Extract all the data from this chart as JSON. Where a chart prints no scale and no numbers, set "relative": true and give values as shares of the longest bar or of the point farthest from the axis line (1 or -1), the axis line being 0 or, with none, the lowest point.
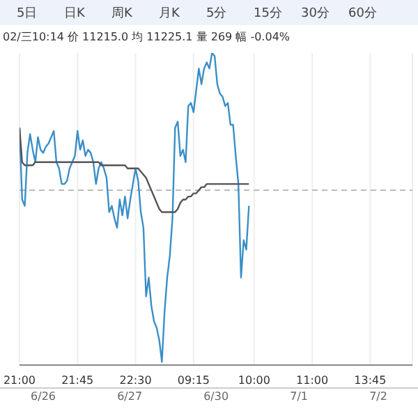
{
  "chart_data": {
    "type": "line",
    "relative": true,
    "grid": "x",
    "legend": false,
    "marker": "none",
    "line_style": "solid",
    "categories": [
      "21:00",
      null,
      null,
      null,
      null,
      null,
      null,
      null,
      null,
      null,
      null,
      null,
      null,
      null,
      null,
      null,
      null,
      null,
      null,
      null,
      null,
      null,
      "21:45",
      null,
      null,
      null,
      null,
      null,
      null,
      null,
      null,
      null,
      null,
      null,
      null,
      null,
      null,
      null,
      null,
      null,
      null,
      null,
      null,
      null,
      "22:30",
      null,
      null,
      null,
      null,
      null,
      null,
      null,
      null,
      null,
      null,
      null,
      null,
      null,
      null,
      null,
      null,
      null,
      null,
      null,
      null,
      null,
      "09:15",
      null,
      null,
      null,
      null,
      null,
      null,
      null,
      null,
      null,
      null,
      null,
      null,
      null,
      null,
      null,
      null,
      null,
      null,
      null,
      null,
      null,
      null,
      "10:00",
      null,
      null,
      null,
      null,
      null,
      null,
      null,
      null,
      null,
      null,
      null,
      null,
      null,
      null,
      null,
      null,
      null,
      null,
      null,
      null,
      null,
      "11:00",
      null,
      null,
      null,
      null,
      null,
      null,
      null,
      null,
      null,
      null,
      null,
      null,
      null,
      null,
      null,
      null,
      null,
      null,
      null,
      null,
      null,
      "13:45",
      null,
      null,
      null,
      null,
      null,
      null,
      null,
      null,
      null,
      null,
      null,
      null,
      null,
      null,
      null,
      null
    ],
    "series": [
      {
        "color": "#3a8fc8",
        "values": [
          0.76,
          0.53,
          0.51,
          0.68,
          0.74,
          0.69,
          0.65,
          0.73,
          0.69,
          0.68,
          0.7,
          0.71,
          0.73,
          0.75,
          0.65,
          0.63,
          0.58,
          0.58,
          0.59,
          0.63,
          0.65,
          0.67,
          0.75,
          0.69,
          0.72,
          0.67,
          0.69,
          0.68,
          0.65,
          0.58,
          0.63,
          0.65,
          0.63,
          0.6,
          0.49,
          0.51,
          0.47,
          0.44,
          0.53,
          0.48,
          0.54,
          0.47,
          0.53,
          0.58,
          0.63,
          0.59,
          0.49,
          0.44,
          0.22,
          0.28,
          0.19,
          0.14,
          0.12,
          0.08,
          0.01,
          0.17,
          0.28,
          0.35,
          0.47,
          0.76,
          0.78,
          0.67,
          0.69,
          0.65,
          0.83,
          0.84,
          0.81,
          0.88,
          0.95,
          0.9,
          0.95,
          0.97,
          0.95,
          1,
          0.99,
          0.9,
          0.87,
          0.86,
          0.83,
          0.84,
          0.77,
          0.77,
          0.67,
          0.58,
          0.28,
          0.4,
          0.37,
          0.51,
          null,
          null,
          null,
          null,
          null,
          null,
          null,
          null,
          null,
          null,
          null,
          null,
          null,
          null,
          null,
          null,
          null,
          null,
          null,
          null,
          null,
          null,
          null,
          null,
          null,
          null,
          null,
          null,
          null,
          null,
          null,
          null,
          null,
          null,
          null,
          null,
          null,
          null,
          null,
          null,
          null,
          null,
          null,
          null,
          null,
          null,
          null,
          null,
          null,
          null,
          null,
          null,
          null,
          null,
          null,
          null,
          null,
          null,
          null,
          null,
          null,
          null
        ]
      },
      {
        "color": "#555555",
        "values": [
          0.76,
          0.65,
          0.64,
          0.64,
          0.64,
          0.64,
          0.65,
          0.65,
          0.65,
          0.65,
          0.65,
          0.65,
          0.65,
          0.65,
          0.65,
          0.65,
          0.65,
          0.65,
          0.65,
          0.65,
          0.65,
          0.65,
          0.65,
          0.65,
          0.65,
          0.65,
          0.65,
          0.65,
          0.65,
          0.65,
          0.65,
          0.64,
          0.64,
          0.64,
          0.64,
          0.64,
          0.64,
          0.64,
          0.64,
          0.64,
          0.64,
          0.63,
          0.63,
          0.63,
          0.63,
          0.63,
          0.62,
          0.61,
          0.6,
          0.58,
          0.56,
          0.54,
          0.52,
          0.5,
          0.49,
          0.49,
          0.49,
          0.49,
          0.49,
          0.49,
          0.5,
          0.52,
          0.53,
          0.53,
          0.54,
          0.54,
          0.55,
          0.55,
          0.56,
          0.57,
          0.57,
          0.58,
          0.58,
          0.58,
          0.58,
          0.58,
          0.58,
          0.58,
          0.58,
          0.58,
          0.58,
          0.58,
          0.58,
          0.58,
          0.58,
          0.58,
          0.58,
          0.58,
          null,
          null,
          null,
          null,
          null,
          null,
          null,
          null,
          null,
          null,
          null,
          null,
          null,
          null,
          null,
          null,
          null,
          null,
          null,
          null,
          null,
          null,
          null,
          null,
          null,
          null,
          null,
          null,
          null,
          null,
          null,
          null,
          null,
          null,
          null,
          null,
          null,
          null,
          null,
          null,
          null,
          null,
          null,
          null,
          null,
          null,
          null,
          null,
          null,
          null,
          null,
          null,
          null,
          null,
          null,
          null,
          null,
          null,
          null,
          null,
          null,
          null
        ]
      }
    ],
    "ref_lines": [
      {
        "axis": "y",
        "value": 0.56,
        "color": "#bbbbbb",
        "line_style": "dashed"
      }
    ],
    "annotations": [
      "5日",
      "日K",
      "周K",
      "月K",
      "5分",
      "15分",
      "30分",
      "60分",
      "02/三10:14 价 11215.0 均 11225.1 量 269 幅 -0.04%",
      "6/26",
      "6/27",
      "6/30",
      "7/1",
      "7/2"
    ]
  }
}
